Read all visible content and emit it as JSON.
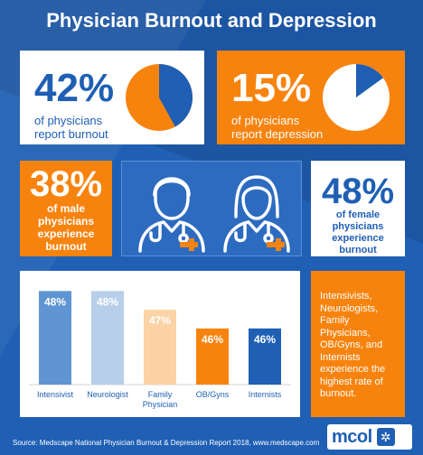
{
  "title": "Physician Burnout and Depression",
  "stats": {
    "burnout": {
      "value": "42%",
      "line1": "of physicians",
      "line2": "report burnout",
      "fraction": 0.42
    },
    "depression": {
      "value": "15%",
      "line1": "of physicians",
      "line2": "report depression",
      "fraction": 0.15
    },
    "male": {
      "value": "38%",
      "lines": [
        "of male",
        "physicians",
        "experience",
        "burnout"
      ]
    },
    "female": {
      "value": "48%",
      "lines": [
        "of female",
        "physicians",
        "experience",
        "burnout"
      ]
    }
  },
  "colors": {
    "blue": "#1f5fb4",
    "orange": "#f7830f",
    "light_blue": "#b8cfe9",
    "light_orange": "#fbd3a6",
    "pie_gray": "#e6e6e6"
  },
  "icons": [
    "male-doctor-icon",
    "female-doctor-icon"
  ],
  "chart_data": {
    "type": "bar",
    "categories": [
      "Intensivist",
      "Neurologist",
      "Family Physician",
      "OB/Gyns",
      "Internists"
    ],
    "category_lines": [
      [
        "Intensivist"
      ],
      [
        "Neurologist"
      ],
      [
        "Family",
        "Physician"
      ],
      [
        "OB/Gyns"
      ],
      [
        "Internists"
      ]
    ],
    "values": [
      48,
      48,
      47,
      46,
      46
    ],
    "value_labels": [
      "48%",
      "48%",
      "47%",
      "46%",
      "46%"
    ],
    "bar_colors": [
      "#5e95d2",
      "#b8cfe9",
      "#fbd3a6",
      "#f7830f",
      "#1f5fb4"
    ],
    "label_colors": [
      "#ffffff",
      "#ffffff",
      "#ffffff",
      "#ffffff",
      "#ffffff"
    ],
    "title": "",
    "xlabel": "",
    "ylabel": "",
    "ylim": [
      43,
      48.5
    ]
  },
  "callout": {
    "lines": [
      "Intensivists,",
      "Neurologists,",
      "Family",
      "Physicians,",
      "OB/Gyns, and",
      "Internists",
      "experience the",
      "highest rate of",
      "burnout."
    ]
  },
  "footer": {
    "source": "Source: Medscape National Physician Burnout & Depression Report 2018, www.medscape.com"
  },
  "logo": {
    "text": "mcol"
  }
}
